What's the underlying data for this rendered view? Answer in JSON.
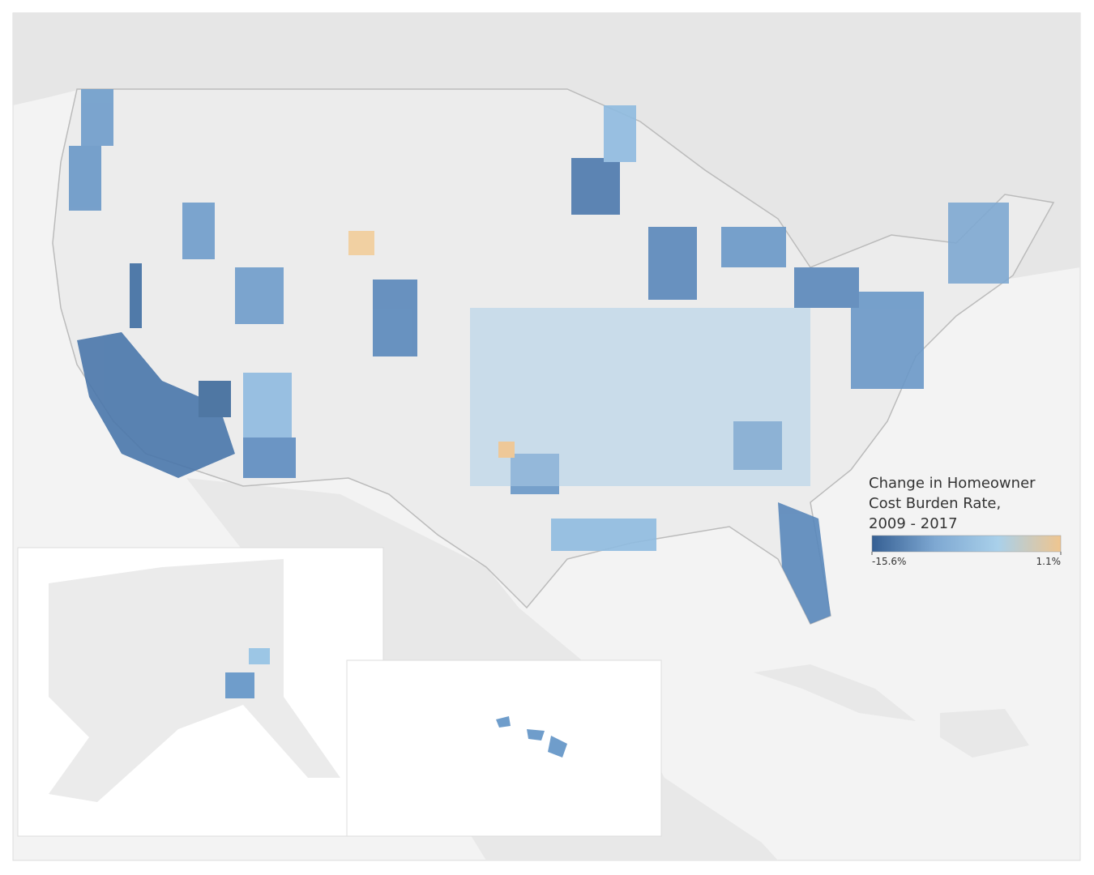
{
  "legend": {
    "title": [
      "Change in Homeowner",
      "Cost Burden Rate,",
      "2009 - 2017"
    ],
    "min": {
      "value": -15.6,
      "label": "-15.6%"
    },
    "max": {
      "value": 1.1,
      "label": "1.1%"
    },
    "colors": [
      "#355f93",
      "#7ea8d2",
      "#a9d0ea",
      "#efc58f"
    ]
  }
}
